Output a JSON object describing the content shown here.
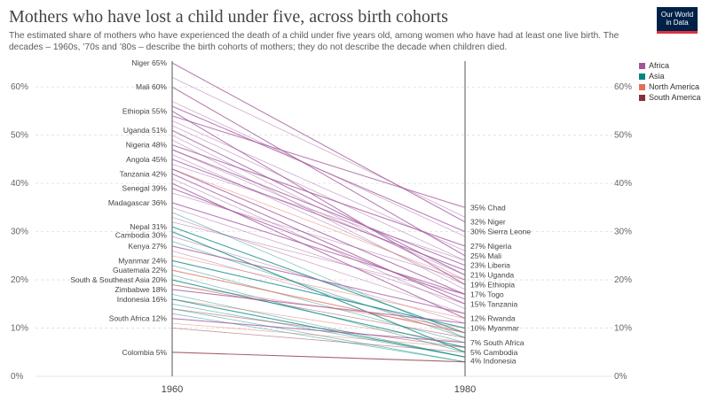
{
  "header": {
    "title": "Mothers who have lost a child under five, across birth cohorts",
    "subtitle": "The estimated share of mothers who have experienced the death of a child under five years old, among women who have had at least one live birth. The decades – 1960s, ’70s and ’80s – describe the birth cohorts of mothers; they do not describe the decade when children died.",
    "logo_line1": "Our World",
    "logo_line2": "in Data",
    "logo_color": "#002147",
    "logo_accent": "#e0313e"
  },
  "legend": [
    {
      "label": "Africa",
      "color": "#a2559c"
    },
    {
      "label": "Asia",
      "color": "#00847e"
    },
    {
      "label": "North America",
      "color": "#e56e5a"
    },
    {
      "label": "South America",
      "color": "#883039"
    }
  ],
  "chart_data": {
    "type": "line",
    "title": "Mothers who have lost a child under five, across birth cohorts",
    "x": [
      "1960",
      "1980"
    ],
    "ylim": [
      0,
      65
    ],
    "yticks": [
      "0%",
      "10%",
      "20%",
      "30%",
      "40%",
      "50%",
      "60%"
    ],
    "grid": true,
    "legend_position": "right",
    "value_suffix": "%",
    "series": [
      {
        "name": "Niger",
        "group": "Africa",
        "values": [
          65,
          32
        ],
        "label_start": true,
        "label_end": true
      },
      {
        "name": "Mali",
        "group": "Africa",
        "values": [
          60,
          25
        ],
        "label_start": true,
        "label_end": true
      },
      {
        "name": "Ethiopia",
        "group": "Africa",
        "values": [
          55,
          19
        ],
        "label_start": true,
        "label_end": true
      },
      {
        "name": "Uganda",
        "group": "Africa",
        "values": [
          51,
          21
        ],
        "label_start": true,
        "label_end": true
      },
      {
        "name": "Nigeria",
        "group": "Africa",
        "values": [
          48,
          27
        ],
        "label_start": true,
        "label_end": true
      },
      {
        "name": "Angola",
        "group": "Africa",
        "values": [
          45,
          22
        ],
        "label_start": true,
        "label_end": false
      },
      {
        "name": "Tanzania",
        "group": "Africa",
        "values": [
          42,
          15
        ],
        "label_start": true,
        "label_end": true
      },
      {
        "name": "Senegal",
        "group": "Africa",
        "values": [
          39,
          16
        ],
        "label_start": true,
        "label_end": false
      },
      {
        "name": "Madagascar",
        "group": "Africa",
        "values": [
          36,
          17
        ],
        "label_start": true,
        "label_end": false
      },
      {
        "name": "Nepal",
        "group": "Asia",
        "values": [
          31,
          9
        ],
        "label_start": true,
        "label_end": false
      },
      {
        "name": "Cambodia",
        "group": "Asia",
        "values": [
          30,
          5
        ],
        "label_start": true,
        "label_end": true
      },
      {
        "name": "Kenya",
        "group": "Africa",
        "values": [
          27,
          13
        ],
        "label_start": true,
        "label_end": false
      },
      {
        "name": "Myanmar",
        "group": "Asia",
        "values": [
          24,
          10
        ],
        "label_start": true,
        "label_end": true
      },
      {
        "name": "Guatemala",
        "group": "North America",
        "values": [
          22,
          9
        ],
        "label_start": true,
        "label_end": false
      },
      {
        "name": "South & Southeast Asia",
        "group": "Asia",
        "values": [
          20,
          6
        ],
        "label_start": true,
        "label_end": false
      },
      {
        "name": "Zimbabwe",
        "group": "Africa",
        "values": [
          18,
          11
        ],
        "label_start": true,
        "label_end": false
      },
      {
        "name": "Indonesia",
        "group": "Asia",
        "values": [
          16,
          4
        ],
        "label_start": true,
        "label_end": true
      },
      {
        "name": "South Africa",
        "group": "Africa",
        "values": [
          12,
          7
        ],
        "label_start": true,
        "label_end": true
      },
      {
        "name": "Colombia",
        "group": "South America",
        "values": [
          5,
          3
        ],
        "label_start": true,
        "label_end": false
      },
      {
        "name": "Chad",
        "group": "Africa",
        "values": [
          54,
          35
        ],
        "label_start": false,
        "label_end": true
      },
      {
        "name": "Sierra Leone",
        "group": "Africa",
        "values": [
          56,
          30
        ],
        "label_start": false,
        "label_end": true
      },
      {
        "name": "Liberia",
        "group": "Africa",
        "values": [
          47,
          23
        ],
        "label_start": false,
        "label_end": true
      },
      {
        "name": "Togo",
        "group": "Africa",
        "values": [
          43,
          17
        ],
        "label_start": false,
        "label_end": true
      },
      {
        "name": "Rwanda",
        "group": "Africa",
        "values": [
          40,
          12
        ],
        "label_start": false,
        "label_end": true
      }
    ],
    "background_lines": [
      {
        "group": "Africa",
        "values": [
          62,
          33
        ]
      },
      {
        "group": "Africa",
        "values": [
          57,
          29
        ]
      },
      {
        "group": "Africa",
        "values": [
          53,
          26
        ]
      },
      {
        "group": "Africa",
        "values": [
          52,
          24
        ]
      },
      {
        "group": "Africa",
        "values": [
          50,
          20
        ]
      },
      {
        "group": "Africa",
        "values": [
          49,
          18
        ]
      },
      {
        "group": "Africa",
        "values": [
          47,
          21
        ]
      },
      {
        "group": "Africa",
        "values": [
          46,
          19
        ]
      },
      {
        "group": "Africa",
        "values": [
          44,
          24
        ]
      },
      {
        "group": "Africa",
        "values": [
          41,
          14
        ]
      },
      {
        "group": "Africa",
        "values": [
          38,
          20
        ]
      },
      {
        "group": "Africa",
        "values": [
          35,
          15
        ]
      },
      {
        "group": "Africa",
        "values": [
          33,
          13
        ]
      },
      {
        "group": "Africa",
        "values": [
          32,
          17
        ]
      },
      {
        "group": "Africa",
        "values": [
          29,
          11
        ]
      },
      {
        "group": "Africa",
        "values": [
          26,
          9
        ]
      },
      {
        "group": "Asia",
        "values": [
          34,
          8
        ]
      },
      {
        "group": "Asia",
        "values": [
          28,
          8
        ]
      },
      {
        "group": "Asia",
        "values": [
          23,
          7
        ]
      },
      {
        "group": "Asia",
        "values": [
          21,
          5
        ]
      },
      {
        "group": "Asia",
        "values": [
          17,
          4
        ]
      },
      {
        "group": "Asia",
        "values": [
          15,
          4
        ]
      },
      {
        "group": "Asia",
        "values": [
          14,
          3
        ]
      },
      {
        "group": "Asia",
        "values": [
          13,
          3
        ]
      },
      {
        "group": "North America",
        "values": [
          43,
          20
        ]
      },
      {
        "group": "North America",
        "values": [
          25,
          12
        ]
      },
      {
        "group": "North America",
        "values": [
          19,
          10
        ]
      },
      {
        "group": "North America",
        "values": [
          16,
          7
        ]
      },
      {
        "group": "North America",
        "values": [
          11,
          6
        ]
      },
      {
        "group": "South America",
        "values": [
          19,
          8
        ]
      },
      {
        "group": "South America",
        "values": [
          14,
          6
        ]
      },
      {
        "group": "South America",
        "values": [
          10,
          5
        ]
      }
    ]
  }
}
